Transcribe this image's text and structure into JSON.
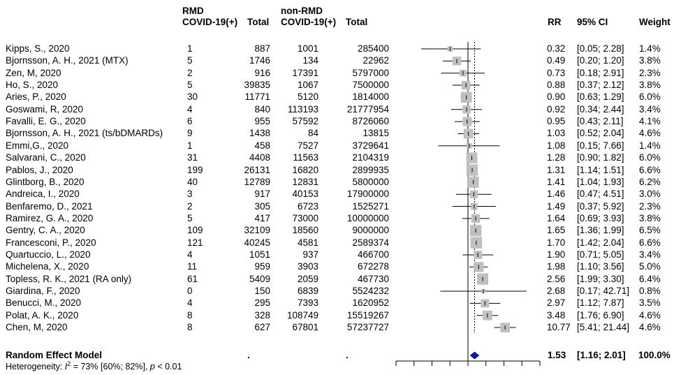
{
  "headers": {
    "study": "",
    "rmd_cases": "RMD",
    "rmd_cases_2": "COVID-19(+)",
    "rmd_total": "Total",
    "nonrmd_cases": "non-RMD",
    "nonrmd_cases_2": "COVID-19(+)",
    "nonrmd_total": "Total",
    "rr": "RR",
    "ci": "95% CI",
    "weight": "Weight"
  },
  "chart_data": {
    "type": "forest",
    "title": "",
    "xscale": "log",
    "xlim": [
      0.01,
      100
    ],
    "reference_line": 1,
    "pooled_line": 1.53,
    "studies": [
      {
        "study": "Kipps, S., 2020",
        "e1": "1",
        "n1": "887",
        "e2": "1001",
        "n2": "285400",
        "rr": 0.32,
        "lo": 0.05,
        "hi": 2.28,
        "rr_txt": "0.32",
        "ci_txt": "[0.05;  2.28]",
        "w": 1.4,
        "w_txt": "1.4%"
      },
      {
        "study": "Bjornsson, A. H., 2021 (MTX)",
        "e1": "5",
        "n1": "1746",
        "e2": "134",
        "n2": "22962",
        "rr": 0.49,
        "lo": 0.2,
        "hi": 1.2,
        "rr_txt": "0.49",
        "ci_txt": "[0.20;  1.20]",
        "w": 3.8,
        "w_txt": "3.8%"
      },
      {
        "study": "Zen, M, 2020",
        "e1": "2",
        "n1": "916",
        "e2": "17391",
        "n2": "5797000",
        "rr": 0.73,
        "lo": 0.18,
        "hi": 2.91,
        "rr_txt": "0.73",
        "ci_txt": "[0.18;  2.91]",
        "w": 2.3,
        "w_txt": "2.3%"
      },
      {
        "study": "Ho, S., 2020",
        "e1": "5",
        "n1": "39835",
        "e2": "1067",
        "n2": "7500000",
        "rr": 0.88,
        "lo": 0.37,
        "hi": 2.12,
        "rr_txt": "0.88",
        "ci_txt": "[0.37;  2.12]",
        "w": 3.8,
        "w_txt": "3.8%"
      },
      {
        "study": "Aries, P., 2020",
        "e1": "30",
        "n1": "11771",
        "e2": "5120",
        "n2": "1814000",
        "rr": 0.9,
        "lo": 0.63,
        "hi": 1.29,
        "rr_txt": "0.90",
        "ci_txt": "[0.63;  1.29]",
        "w": 6.0,
        "w_txt": "6.0%"
      },
      {
        "study": "Goswami, R, 2020",
        "e1": "4",
        "n1": "840",
        "e2": "113193",
        "n2": "21777954",
        "rr": 0.92,
        "lo": 0.34,
        "hi": 2.44,
        "rr_txt": "0.92",
        "ci_txt": "[0.34;  2.44]",
        "w": 3.4,
        "w_txt": "3.4%"
      },
      {
        "study": "Favalli, E. G., 2020",
        "e1": "6",
        "n1": "955",
        "e2": "57592",
        "n2": "8726060",
        "rr": 0.95,
        "lo": 0.43,
        "hi": 2.11,
        "rr_txt": "0.95",
        "ci_txt": "[0.43;  2.11]",
        "w": 4.1,
        "w_txt": "4.1%"
      },
      {
        "study": "Bjornsson, A. H., 2021 (ts/bDMARDs)",
        "e1": "9",
        "n1": "1438",
        "e2": "84",
        "n2": "13815",
        "rr": 1.03,
        "lo": 0.52,
        "hi": 2.04,
        "rr_txt": "1.03",
        "ci_txt": "[0.52;  2.04]",
        "w": 4.6,
        "w_txt": "4.6%"
      },
      {
        "study": "Emmi,G., 2020",
        "e1": "1",
        "n1": "458",
        "e2": "7527",
        "n2": "3729641",
        "rr": 1.08,
        "lo": 0.15,
        "hi": 7.66,
        "rr_txt": "1.08",
        "ci_txt": "[0.15;  7.66]",
        "w": 1.4,
        "w_txt": "1.4%"
      },
      {
        "study": "Salvarani, C., 2020",
        "e1": "31",
        "n1": "4408",
        "e2": "11563",
        "n2": "2104319",
        "rr": 1.28,
        "lo": 0.9,
        "hi": 1.82,
        "rr_txt": "1.28",
        "ci_txt": "[0.90;  1.82]",
        "w": 6.0,
        "w_txt": "6.0%"
      },
      {
        "study": "Pablos, J., 2020",
        "e1": "199",
        "n1": "26131",
        "e2": "16820",
        "n2": "2899935",
        "rr": 1.31,
        "lo": 1.14,
        "hi": 1.51,
        "rr_txt": "1.31",
        "ci_txt": "[1.14;  1.51]",
        "w": 6.6,
        "w_txt": "6.6%"
      },
      {
        "study": "Glintborg, B., 2020",
        "e1": "40",
        "n1": "12789",
        "e2": "12831",
        "n2": "5800000",
        "rr": 1.41,
        "lo": 1.04,
        "hi": 1.93,
        "rr_txt": "1.41",
        "ci_txt": "[1.04;  1.93]",
        "w": 6.2,
        "w_txt": "6.2%"
      },
      {
        "study": "Andreica, I., 2020",
        "e1": "3",
        "n1": "917",
        "e2": "40153",
        "n2": "17900000",
        "rr": 1.46,
        "lo": 0.47,
        "hi": 4.51,
        "rr_txt": "1.46",
        "ci_txt": "[0.47;  4.51]",
        "w": 3.0,
        "w_txt": "3.0%"
      },
      {
        "study": "Benfaremo, D., 2021",
        "e1": "2",
        "n1": "305",
        "e2": "6723",
        "n2": "1525271",
        "rr": 1.49,
        "lo": 0.37,
        "hi": 5.92,
        "rr_txt": "1.49",
        "ci_txt": "[0.37;  5.92]",
        "w": 2.3,
        "w_txt": "2.3%"
      },
      {
        "study": "Ramirez, G. A., 2020",
        "e1": "5",
        "n1": "417",
        "e2": "73000",
        "n2": "10000000",
        "rr": 1.64,
        "lo": 0.69,
        "hi": 3.93,
        "rr_txt": "1.64",
        "ci_txt": "[0.69;  3.93]",
        "w": 3.8,
        "w_txt": "3.8%"
      },
      {
        "study": "Gentry, C. A., 2020",
        "e1": "109",
        "n1": "32109",
        "e2": "18560",
        "n2": "9000000",
        "rr": 1.65,
        "lo": 1.36,
        "hi": 1.99,
        "rr_txt": "1.65",
        "ci_txt": "[1.36;  1.99]",
        "w": 6.5,
        "w_txt": "6.5%"
      },
      {
        "study": "Francesconi, P., 2020",
        "e1": "121",
        "n1": "40245",
        "e2": "4581",
        "n2": "2589374",
        "rr": 1.7,
        "lo": 1.42,
        "hi": 2.04,
        "rr_txt": "1.70",
        "ci_txt": "[1.42;  2.04]",
        "w": 6.6,
        "w_txt": "6.6%"
      },
      {
        "study": "Quartuccio, L., 2020",
        "e1": "4",
        "n1": "1051",
        "e2": "937",
        "n2": "466700",
        "rr": 1.9,
        "lo": 0.71,
        "hi": 5.05,
        "rr_txt": "1.90",
        "ci_txt": "[0.71;  5.05]",
        "w": 3.4,
        "w_txt": "3.4%"
      },
      {
        "study": "Michelena, X., 2020",
        "e1": "11",
        "n1": "959",
        "e2": "3903",
        "n2": "672278",
        "rr": 1.98,
        "lo": 1.1,
        "hi": 3.56,
        "rr_txt": "1.98",
        "ci_txt": "[1.10;  3.56]",
        "w": 5.0,
        "w_txt": "5.0%"
      },
      {
        "study": "Topless, R. K., 2021 (RA only)",
        "e1": "61",
        "n1": "5409",
        "e2": "2059",
        "n2": "467730",
        "rr": 2.56,
        "lo": 1.99,
        "hi": 3.3,
        "rr_txt": "2.56",
        "ci_txt": "[1.99;  3.30]",
        "w": 6.4,
        "w_txt": "6.4%"
      },
      {
        "study": "Giardina, F., 2020",
        "e1": "0",
        "n1": "150",
        "e2": "6839",
        "n2": "5524232",
        "rr": 2.68,
        "lo": 0.17,
        "hi": 42.71,
        "rr_txt": "2.68",
        "ci_txt": "[0.17; 42.71]",
        "w": 0.8,
        "w_txt": "0.8%"
      },
      {
        "study": "Benucci, M., 2020",
        "e1": "4",
        "n1": "295",
        "e2": "7393",
        "n2": "1620952",
        "rr": 2.97,
        "lo": 1.12,
        "hi": 7.87,
        "rr_txt": "2.97",
        "ci_txt": "[1.12;  7.87]",
        "w": 3.5,
        "w_txt": "3.5%"
      },
      {
        "study": "Polat, A. K., 2020",
        "e1": "8",
        "n1": "328",
        "e2": "108749",
        "n2": "15519267",
        "rr": 3.48,
        "lo": 1.76,
        "hi": 6.9,
        "rr_txt": "3.48",
        "ci_txt": "[1.76;  6.90]",
        "w": 4.6,
        "w_txt": "4.6%"
      },
      {
        "study": "Chen, M, 2020",
        "e1": "8",
        "n1": "627",
        "e2": "67801",
        "n2": "57237727",
        "rr": 10.77,
        "lo": 5.41,
        "hi": 21.44,
        "rr_txt": "10.77",
        "ci_txt": "[5.41; 21.44]",
        "w": 4.6,
        "w_txt": "4.6%"
      }
    ],
    "summary": {
      "label": "Random Effect Model",
      "e1": ".",
      "e2": ".",
      "rr": 1.53,
      "lo": 1.16,
      "hi": 2.01,
      "rr_txt": "1.53",
      "ci_txt": "[1.16;  2.01]",
      "w_txt": "100.0%"
    },
    "heterogeneity": {
      "prefix": "Heterogeneity: ",
      "i2_label": "I",
      "i2_sup": "2",
      "rest": " = 73% [60%; 82%], ",
      "p_label": "p",
      "p_rest": " < 0.01"
    }
  },
  "colors": {
    "box": "#c0c0c0",
    "diamond": "#1010c8",
    "line": "#000000"
  }
}
